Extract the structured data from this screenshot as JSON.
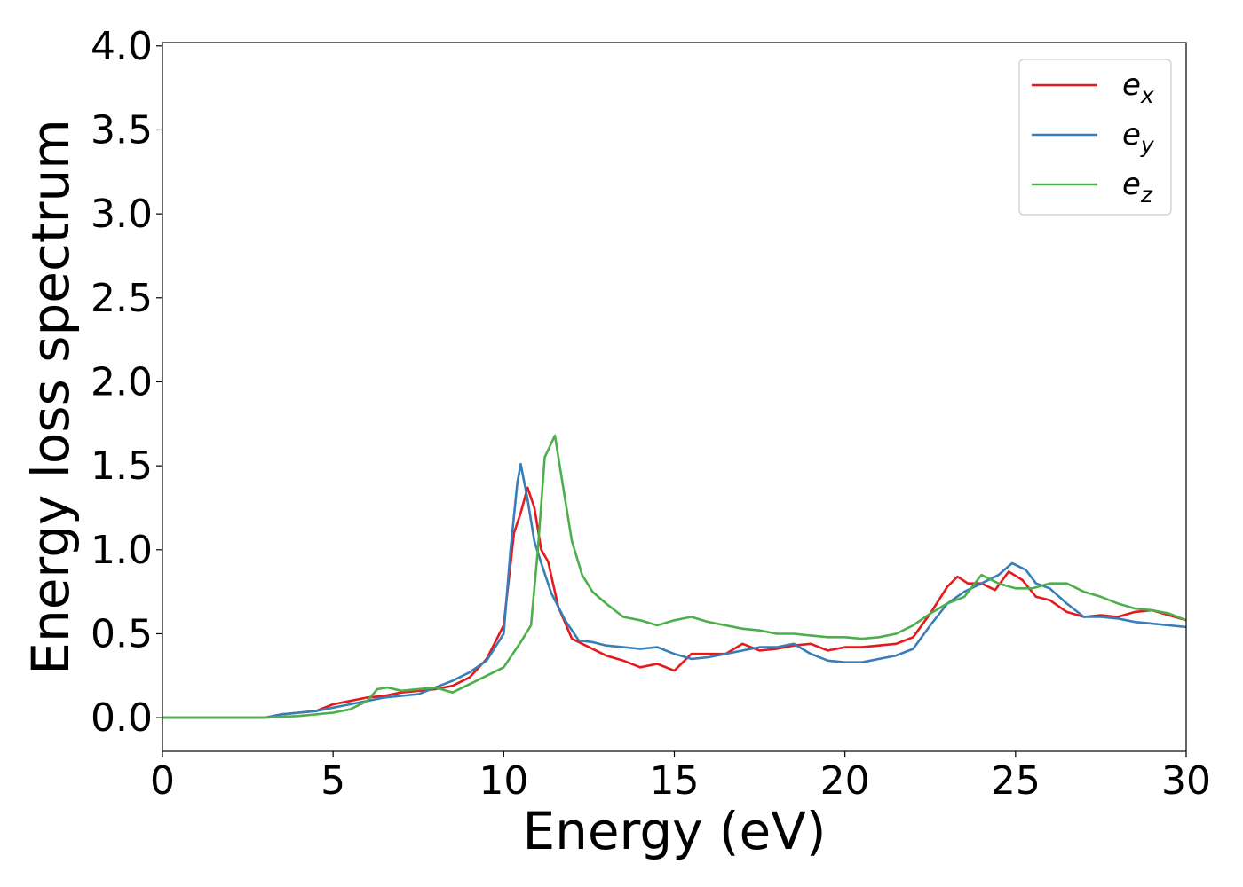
{
  "chart_data": {
    "type": "line",
    "xlabel": "Energy (eV)",
    "ylabel": "Energy loss spectrum",
    "xlim": [
      0,
      30
    ],
    "ylim": [
      -0.2,
      4.02
    ],
    "xticks": [
      0,
      5,
      10,
      15,
      20,
      25,
      30
    ],
    "xtick_labels": [
      "0",
      "5",
      "10",
      "15",
      "20",
      "25",
      "30"
    ],
    "yticks": [
      0.0,
      0.5,
      1.0,
      1.5,
      2.0,
      2.5,
      3.0,
      3.5,
      4.0
    ],
    "ytick_labels": [
      "0.0",
      "0.5",
      "1.0",
      "1.5",
      "2.0",
      "2.5",
      "3.0",
      "3.5",
      "4.0"
    ],
    "grid": false,
    "legend_position": "top-right",
    "series": [
      {
        "name": "e",
        "subscript": "x",
        "color": "#e41a1c",
        "x": [
          0,
          3,
          3.5,
          4,
          4.5,
          5,
          5.5,
          6,
          6.5,
          7,
          7.5,
          8,
          8.5,
          9,
          9.5,
          10,
          10.3,
          10.5,
          10.7,
          10.9,
          11.1,
          11.3,
          11.6,
          12,
          12.5,
          13,
          13.5,
          14,
          14.5,
          15,
          15.5,
          16,
          16.5,
          17,
          17.5,
          18,
          18.5,
          19,
          19.5,
          20,
          20.5,
          21,
          21.5,
          22,
          22.5,
          23,
          23.3,
          23.6,
          24,
          24.4,
          24.8,
          25.2,
          25.6,
          26,
          26.5,
          27,
          27.5,
          28,
          28.5,
          29,
          29.5,
          30
        ],
        "y": [
          0.0,
          0.0,
          0.02,
          0.03,
          0.04,
          0.08,
          0.1,
          0.12,
          0.13,
          0.15,
          0.16,
          0.17,
          0.19,
          0.24,
          0.35,
          0.55,
          1.1,
          1.22,
          1.37,
          1.25,
          1.0,
          0.93,
          0.66,
          0.47,
          0.42,
          0.37,
          0.34,
          0.3,
          0.32,
          0.28,
          0.38,
          0.38,
          0.38,
          0.44,
          0.4,
          0.41,
          0.43,
          0.44,
          0.4,
          0.42,
          0.42,
          0.43,
          0.44,
          0.48,
          0.62,
          0.78,
          0.84,
          0.8,
          0.8,
          0.76,
          0.87,
          0.82,
          0.72,
          0.7,
          0.63,
          0.6,
          0.61,
          0.6,
          0.63,
          0.64,
          0.61,
          0.58
        ]
      },
      {
        "name": "e",
        "subscript": "y",
        "color": "#377eb8",
        "x": [
          0,
          3,
          3.5,
          4,
          4.5,
          5,
          5.5,
          6,
          6.5,
          7,
          7.5,
          8,
          8.5,
          9,
          9.5,
          10,
          10.2,
          10.4,
          10.5,
          10.7,
          10.9,
          11.1,
          11.4,
          11.8,
          12.2,
          12.6,
          13,
          13.5,
          14,
          14.5,
          15,
          15.5,
          16,
          16.5,
          17,
          17.5,
          18,
          18.5,
          19,
          19.5,
          20,
          20.5,
          21,
          21.5,
          22,
          22.5,
          23,
          23.5,
          24,
          24.5,
          24.9,
          25.3,
          25.6,
          26,
          26.5,
          27,
          27.5,
          28,
          28.5,
          29,
          29.5,
          30
        ],
        "y": [
          0.0,
          0.0,
          0.02,
          0.03,
          0.04,
          0.06,
          0.08,
          0.1,
          0.12,
          0.13,
          0.14,
          0.18,
          0.22,
          0.27,
          0.34,
          0.5,
          1.0,
          1.4,
          1.51,
          1.3,
          1.05,
          0.92,
          0.74,
          0.58,
          0.46,
          0.45,
          0.43,
          0.42,
          0.41,
          0.42,
          0.38,
          0.35,
          0.36,
          0.38,
          0.4,
          0.42,
          0.42,
          0.44,
          0.38,
          0.34,
          0.33,
          0.33,
          0.35,
          0.37,
          0.41,
          0.55,
          0.68,
          0.75,
          0.8,
          0.85,
          0.92,
          0.88,
          0.8,
          0.77,
          0.68,
          0.6,
          0.6,
          0.59,
          0.57,
          0.56,
          0.55,
          0.54
        ]
      },
      {
        "name": "e",
        "subscript": "z",
        "color": "#4daf4a",
        "x": [
          0,
          3,
          4,
          5,
          5.5,
          6,
          6.3,
          6.6,
          7,
          7.5,
          8,
          8.5,
          9,
          9.5,
          10,
          10.5,
          10.8,
          11,
          11.2,
          11.5,
          11.8,
          12,
          12.3,
          12.6,
          13,
          13.5,
          14,
          14.5,
          15,
          15.5,
          16,
          16.5,
          17,
          17.5,
          18,
          18.5,
          19,
          19.5,
          20,
          20.5,
          21,
          21.5,
          22,
          22.5,
          23,
          23.5,
          24,
          24.5,
          25,
          25.5,
          26,
          26.5,
          27,
          27.5,
          28,
          28.5,
          29,
          29.5,
          30
        ],
        "y": [
          0.0,
          0.0,
          0.01,
          0.03,
          0.05,
          0.1,
          0.17,
          0.18,
          0.16,
          0.17,
          0.18,
          0.15,
          0.2,
          0.25,
          0.3,
          0.45,
          0.55,
          1.0,
          1.55,
          1.68,
          1.3,
          1.05,
          0.85,
          0.75,
          0.68,
          0.6,
          0.58,
          0.55,
          0.58,
          0.6,
          0.57,
          0.55,
          0.53,
          0.52,
          0.5,
          0.5,
          0.49,
          0.48,
          0.48,
          0.47,
          0.48,
          0.5,
          0.55,
          0.62,
          0.68,
          0.72,
          0.85,
          0.8,
          0.77,
          0.77,
          0.8,
          0.8,
          0.75,
          0.72,
          0.68,
          0.65,
          0.64,
          0.62,
          0.58
        ]
      }
    ]
  }
}
